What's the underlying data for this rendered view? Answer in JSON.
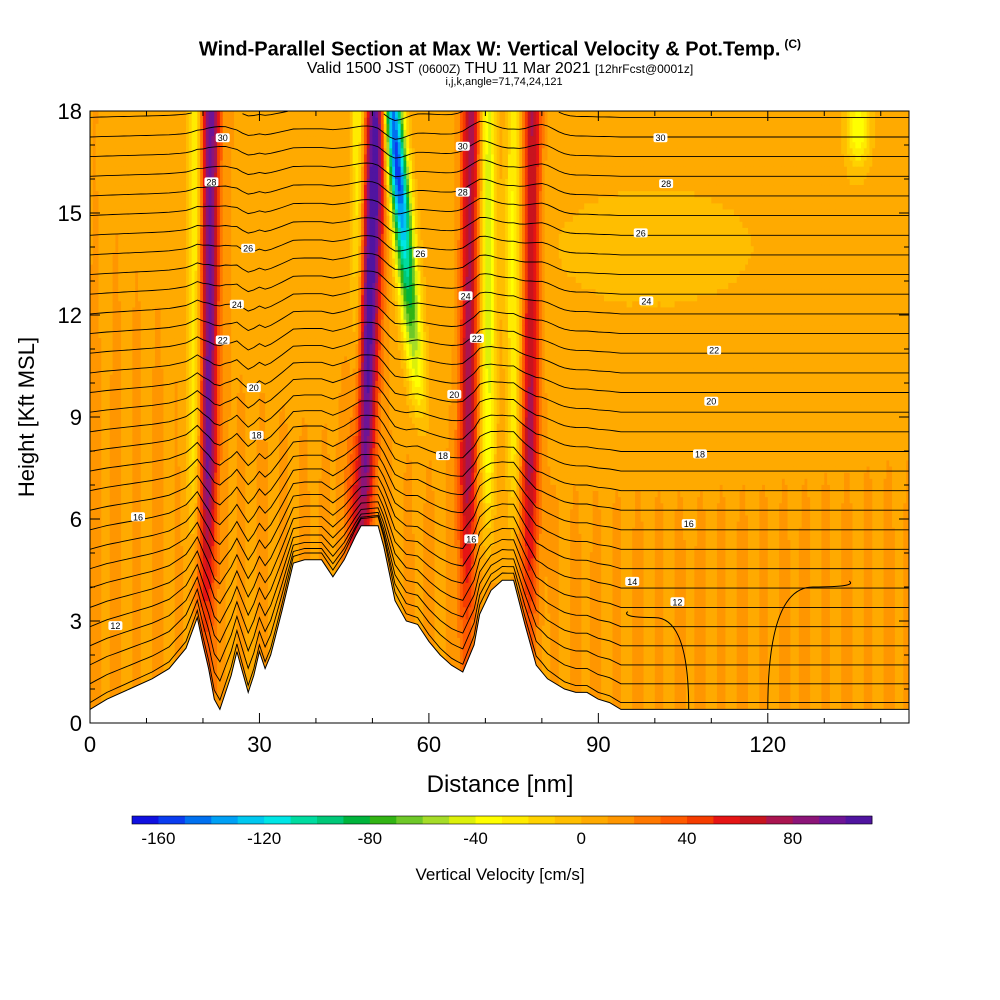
{
  "header": {
    "title": "Wind-Parallel Section at Max W: Vertical Velocity & Pot.Temp.",
    "copyright": "(C)",
    "valid_prefix": "Valid 1500 JST",
    "valid_zulu": "(0600Z)",
    "valid_date": "THU 11 Mar 2021",
    "forecast": "[12hrFcst@0001z]",
    "params": "i,j,k,angle=71,74,24,121"
  },
  "chart_data": {
    "type": "heatmap",
    "description": "",
    "xlabel": "Distance [nm]",
    "ylabel": "Height [Kft MSL]",
    "xlim": [
      0,
      145
    ],
    "ylim": [
      0,
      18
    ],
    "xticks": [
      0,
      30,
      60,
      90,
      120
    ],
    "yticks": [
      0,
      3,
      6,
      9,
      12,
      15,
      18
    ],
    "colorbar": {
      "label": "Vertical Velocity [cm/s]",
      "min": -170,
      "max": 110,
      "ticks": [
        -160,
        -120,
        -80,
        -40,
        0,
        40,
        80
      ],
      "colors": [
        "#1010e0",
        "#0a3cf0",
        "#0070f0",
        "#00a0f5",
        "#00c8f0",
        "#00e6e6",
        "#00dca0",
        "#00c878",
        "#00b43c",
        "#32b414",
        "#6ec828",
        "#a5dc28",
        "#dcf00a",
        "#ffff00",
        "#ffeb00",
        "#ffd200",
        "#ffbe00",
        "#ffaa00",
        "#ff9600",
        "#ff7800",
        "#ff5a00",
        "#f53c00",
        "#e61414",
        "#c8141e",
        "#aa1450",
        "#8c1478",
        "#6e1496",
        "#5014a0"
      ]
    },
    "terrain": [
      [
        0,
        0.4
      ],
      [
        3,
        0.7
      ],
      [
        7,
        1.0
      ],
      [
        11,
        1.3
      ],
      [
        14,
        1.6
      ],
      [
        17,
        2.2
      ],
      [
        19,
        3.1
      ],
      [
        20,
        2.3
      ],
      [
        21,
        1.6
      ],
      [
        22,
        0.7
      ],
      [
        23,
        0.4
      ],
      [
        25,
        1.4
      ],
      [
        26,
        2.1
      ],
      [
        27,
        1.5
      ],
      [
        28,
        0.9
      ],
      [
        29,
        1.4
      ],
      [
        30,
        2.1
      ],
      [
        31,
        1.6
      ],
      [
        32,
        2.0
      ],
      [
        34,
        3.3
      ],
      [
        36,
        4.7
      ],
      [
        38,
        4.8
      ],
      [
        41,
        4.8
      ],
      [
        43,
        4.3
      ],
      [
        45,
        4.8
      ],
      [
        47,
        5.5
      ],
      [
        48,
        5.8
      ],
      [
        51,
        5.8
      ],
      [
        52,
        5.2
      ],
      [
        53,
        4.4
      ],
      [
        54,
        3.6
      ],
      [
        56,
        3.0
      ],
      [
        58,
        2.9
      ],
      [
        60,
        2.4
      ],
      [
        62,
        2.0
      ],
      [
        64,
        1.7
      ],
      [
        66,
        1.5
      ],
      [
        68,
        2.3
      ],
      [
        69,
        3.2
      ],
      [
        71,
        3.9
      ],
      [
        73,
        4.2
      ],
      [
        75,
        4.2
      ],
      [
        77,
        2.9
      ],
      [
        79,
        1.7
      ],
      [
        81,
        1.3
      ],
      [
        84,
        1.0
      ],
      [
        86,
        0.9
      ],
      [
        88,
        0.9
      ],
      [
        90,
        0.7
      ],
      [
        92,
        0.6
      ],
      [
        94,
        0.4
      ],
      [
        145,
        0.4
      ]
    ],
    "updrafts": [
      {
        "x": 21,
        "peak": 85
      },
      {
        "x": 50,
        "peak": 105
      },
      {
        "x": 67,
        "peak": 70
      },
      {
        "x": 78,
        "peak": 65
      }
    ],
    "downdrafts": [
      {
        "x": 53.5,
        "peak": -165
      },
      {
        "x": 18.5,
        "peak": -40
      },
      {
        "x": 47.5,
        "peak": -45
      },
      {
        "x": 70.5,
        "peak": -50
      },
      {
        "x": 75,
        "peak": -35
      },
      {
        "x": 136,
        "peak": -45
      }
    ],
    "isentropes": {
      "count": 31,
      "labels": [
        {
          "x": 4.5,
          "y": 2.85,
          "text": "12"
        },
        {
          "x": 104,
          "y": 3.55,
          "text": "12"
        },
        {
          "x": 96,
          "y": 4.15,
          "text": "14"
        },
        {
          "x": 8.5,
          "y": 6.05,
          "text": "16"
        },
        {
          "x": 67.5,
          "y": 5.4,
          "text": "16"
        },
        {
          "x": 106,
          "y": 5.85,
          "text": "16"
        },
        {
          "x": 29.5,
          "y": 8.45,
          "text": "18"
        },
        {
          "x": 62.5,
          "y": 7.85,
          "text": "18"
        },
        {
          "x": 108,
          "y": 7.9,
          "text": "18"
        },
        {
          "x": 29,
          "y": 9.85,
          "text": "20"
        },
        {
          "x": 64.5,
          "y": 9.65,
          "text": "20"
        },
        {
          "x": 110,
          "y": 9.45,
          "text": "20"
        },
        {
          "x": 23.5,
          "y": 11.25,
          "text": "22"
        },
        {
          "x": 68.5,
          "y": 11.3,
          "text": "22"
        },
        {
          "x": 110.5,
          "y": 10.95,
          "text": "22"
        },
        {
          "x": 26,
          "y": 12.3,
          "text": "24"
        },
        {
          "x": 66.5,
          "y": 12.55,
          "text": "24"
        },
        {
          "x": 98.5,
          "y": 12.4,
          "text": "24"
        },
        {
          "x": 28,
          "y": 13.95,
          "text": "26"
        },
        {
          "x": 58.5,
          "y": 13.8,
          "text": "26"
        },
        {
          "x": 97.5,
          "y": 14.4,
          "text": "26"
        },
        {
          "x": 21.5,
          "y": 15.9,
          "text": "28"
        },
        {
          "x": 66,
          "y": 15.6,
          "text": "28"
        },
        {
          "x": 102,
          "y": 15.85,
          "text": "28"
        },
        {
          "x": 23.5,
          "y": 17.2,
          "text": "30"
        },
        {
          "x": 66,
          "y": 16.95,
          "text": "30"
        },
        {
          "x": 101,
          "y": 17.2,
          "text": "30"
        }
      ]
    },
    "zero_contours": [
      {
        "x_base": 106,
        "x_top": 100,
        "y_top": 3.1
      },
      {
        "x_base": 120,
        "x_top": 128,
        "y_top": 4.0
      }
    ]
  }
}
